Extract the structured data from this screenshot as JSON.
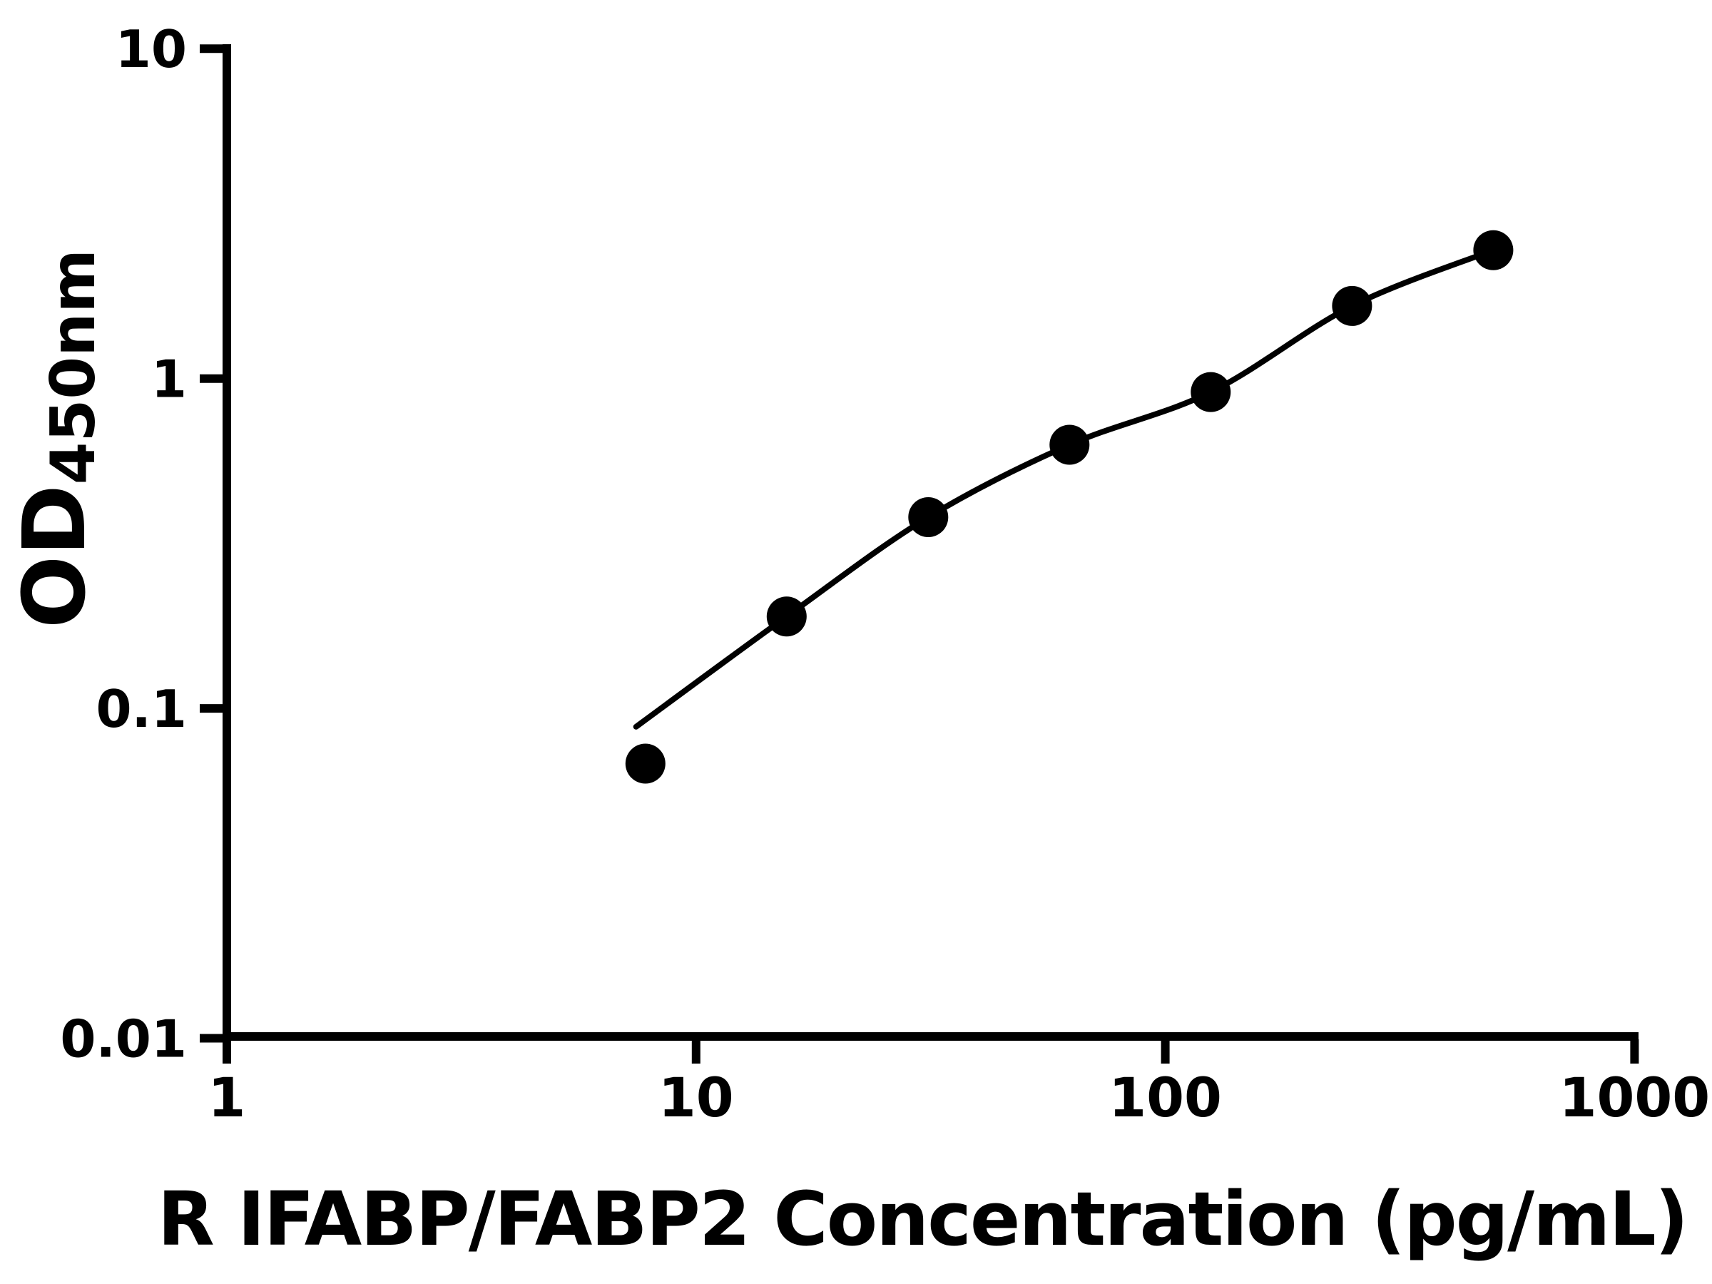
{
  "figure": {
    "background_color": "#ffffff",
    "foreground_color": "#000000"
  },
  "chart_data": {
    "type": "scatter",
    "subtype": "elisa-standard-curve-with-fit-line",
    "title": "",
    "xlabel": "R IFABP/FABP2 Concentration (pg/mL)",
    "ylabel_main": "OD",
    "ylabel_sub": "450nm",
    "x_scale": "log10",
    "y_scale": "log10",
    "xlim": [
      1,
      1000
    ],
    "ylim": [
      0.01,
      10
    ],
    "grid": false,
    "legend": null,
    "x_ticks": [
      {
        "value": 1,
        "label": "1"
      },
      {
        "value": 10,
        "label": "10"
      },
      {
        "value": 100,
        "label": "100"
      },
      {
        "value": 1000,
        "label": "1000"
      }
    ],
    "y_ticks": [
      {
        "value": 10,
        "label": "10"
      },
      {
        "value": 1,
        "label": "1"
      },
      {
        "value": 0.1,
        "label": "0.1"
      },
      {
        "value": 0.01,
        "label": "0.01"
      }
    ],
    "points": [
      {
        "x": 7.8,
        "y": 0.068
      },
      {
        "x": 15.6,
        "y": 0.19
      },
      {
        "x": 31.25,
        "y": 0.38
      },
      {
        "x": 62.5,
        "y": 0.63
      },
      {
        "x": 125,
        "y": 0.91
      },
      {
        "x": 250,
        "y": 1.66
      },
      {
        "x": 500,
        "y": 2.45
      }
    ],
    "fit_curve": [
      [
        7.45,
        0.088
      ],
      [
        15.6,
        0.19
      ],
      [
        31.25,
        0.38
      ],
      [
        62.5,
        0.63
      ],
      [
        125,
        0.91
      ],
      [
        250,
        1.66
      ],
      [
        500,
        2.45
      ]
    ],
    "marker": {
      "shape": "circle",
      "color": "#000000"
    },
    "line_color": "#000000"
  }
}
